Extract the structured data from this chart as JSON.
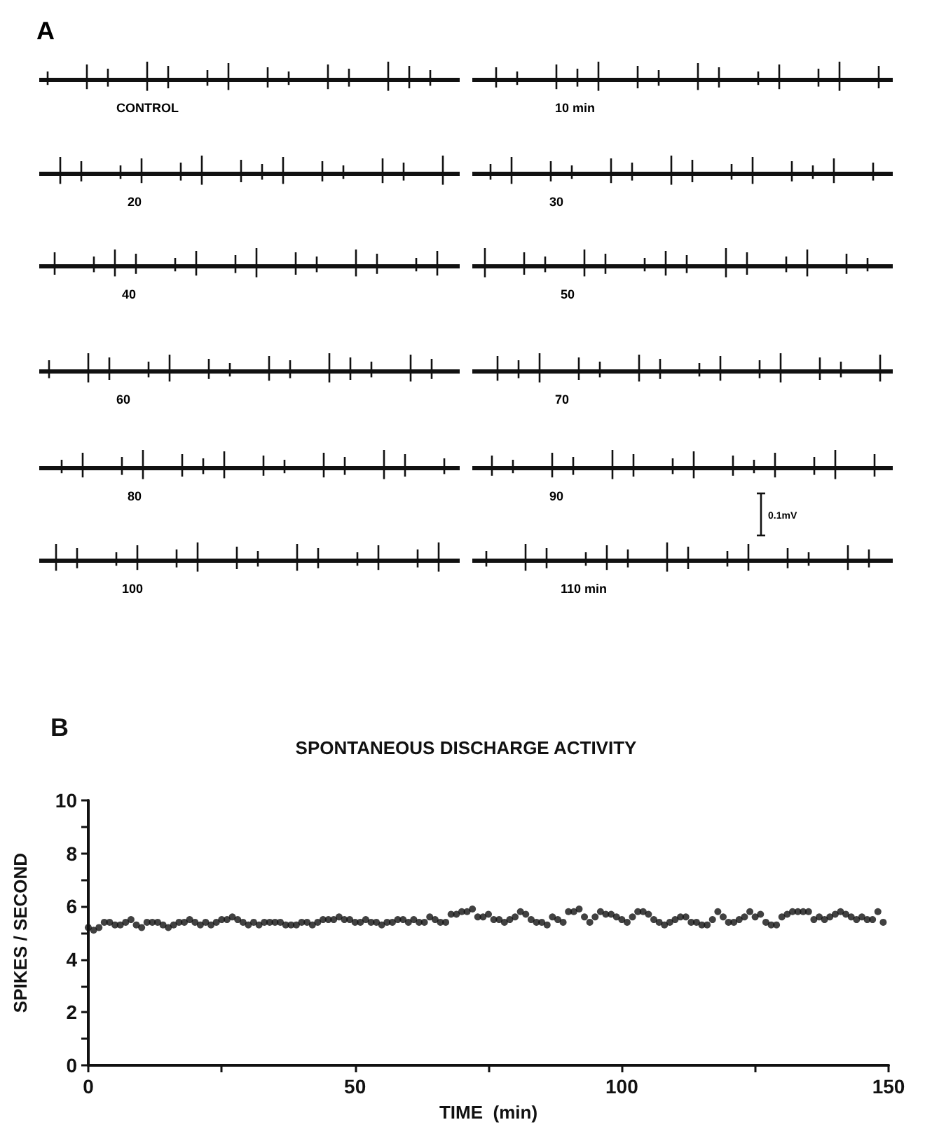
{
  "chart_data": [
    {
      "type": "other",
      "title": "A",
      "annotations": [
        "CONTROL",
        "10 min",
        "20",
        "30",
        "40",
        "50",
        "60",
        "70",
        "80",
        "90",
        "100",
        "110 min",
        "0.1mV"
      ]
    },
    {
      "type": "scatter",
      "title": "SPONTANEOUS DISCHARGE ACTIVITY",
      "annotations": [
        "B"
      ],
      "xlabel": "TIME  (min)",
      "ylabel": "SPIKES / SECOND",
      "xlim": [
        0,
        150
      ],
      "ylim": [
        0,
        10
      ],
      "xticks": [
        0,
        {
          "value": 25,
          "label": null
        },
        50,
        {
          "value": 75,
          "label": null
        },
        100,
        {
          "value": 125,
          "label": null
        },
        150
      ],
      "yticks": [
        0,
        {
          "value": 1,
          "label": null
        },
        2,
        {
          "value": 3,
          "label": null
        },
        4,
        {
          "value": 5,
          "label": null
        },
        6,
        {
          "value": 7,
          "label": null
        },
        8,
        {
          "value": 9,
          "label": null
        },
        10
      ],
      "grid": false,
      "marker": "circle",
      "x": [
        0,
        1,
        2,
        3,
        4,
        5,
        6,
        7,
        8,
        9,
        10,
        11,
        12,
        13,
        14,
        15,
        16,
        17,
        18,
        19,
        20,
        21,
        22,
        23,
        24,
        25,
        26,
        27,
        28,
        29,
        30,
        31,
        32,
        33,
        34,
        35,
        36,
        37,
        38,
        39,
        40,
        41,
        42,
        43,
        44,
        45,
        46,
        47,
        48,
        49,
        50,
        51,
        52,
        53,
        54,
        55,
        56,
        57,
        58,
        59,
        60,
        61,
        62,
        63,
        64,
        65,
        66,
        67,
        68,
        69,
        70,
        71,
        72,
        73,
        74,
        75,
        76,
        77,
        78,
        79,
        80,
        81,
        82,
        83,
        84,
        85,
        86,
        87,
        88,
        89,
        90,
        91,
        92,
        93,
        94,
        95,
        96,
        97,
        98,
        99,
        100,
        101,
        102,
        103,
        104,
        105,
        106,
        107,
        108,
        109,
        110,
        111,
        112,
        113,
        114,
        115,
        116,
        117,
        118,
        119,
        120,
        121,
        122,
        123,
        124,
        125,
        126,
        127,
        128,
        129,
        130,
        131,
        132,
        133,
        134,
        135,
        136,
        137,
        138,
        139,
        140,
        141,
        142,
        143,
        144,
        145,
        146,
        147,
        148,
        149
      ],
      "series": [
        {
          "color": "#111111",
          "values": [
            5.2,
            5.1,
            5.2,
            5.4,
            5.4,
            5.3,
            5.3,
            5.4,
            5.5,
            5.3,
            5.2,
            5.4,
            5.4,
            5.4,
            5.3,
            5.2,
            5.3,
            5.4,
            5.4,
            5.5,
            5.4,
            5.3,
            5.4,
            5.3,
            5.4,
            5.5,
            5.5,
            5.6,
            5.5,
            5.4,
            5.3,
            5.4,
            5.3,
            5.4,
            5.4,
            5.4,
            5.4,
            5.3,
            5.3,
            5.3,
            5.4,
            5.4,
            5.3,
            5.4,
            5.5,
            5.5,
            5.5,
            5.6,
            5.5,
            5.5,
            5.4,
            5.4,
            5.5,
            5.4,
            5.4,
            5.3,
            5.4,
            5.4,
            5.5,
            5.5,
            5.4,
            5.5,
            5.4,
            5.4,
            5.6,
            5.5,
            5.4,
            5.4,
            5.7,
            5.7,
            5.8,
            5.8,
            5.9,
            5.6,
            5.6,
            5.7,
            5.5,
            5.5,
            5.4,
            5.5,
            5.6,
            5.8,
            5.7,
            5.5,
            5.4,
            5.4,
            5.3,
            5.6,
            5.5,
            5.4,
            5.8,
            5.8,
            5.9,
            5.6,
            5.4,
            5.6,
            5.8,
            5.7,
            5.7,
            5.6,
            5.5,
            5.4,
            5.6,
            5.8,
            5.8,
            5.7,
            5.5,
            5.4,
            5.3,
            5.4,
            5.5,
            5.6,
            5.6,
            5.4,
            5.4,
            5.3,
            5.3,
            5.5,
            5.8,
            5.6,
            5.4,
            5.4,
            5.5,
            5.6,
            5.8,
            5.6,
            5.7,
            5.4,
            5.3,
            5.3,
            5.6,
            5.7,
            5.8,
            5.8,
            5.8,
            5.8,
            5.5,
            5.6,
            5.5,
            5.6,
            5.7,
            5.8,
            5.7,
            5.6,
            5.5,
            5.6,
            5.5,
            5.5,
            5.8,
            5.4
          ]
        }
      ]
    }
  ]
}
